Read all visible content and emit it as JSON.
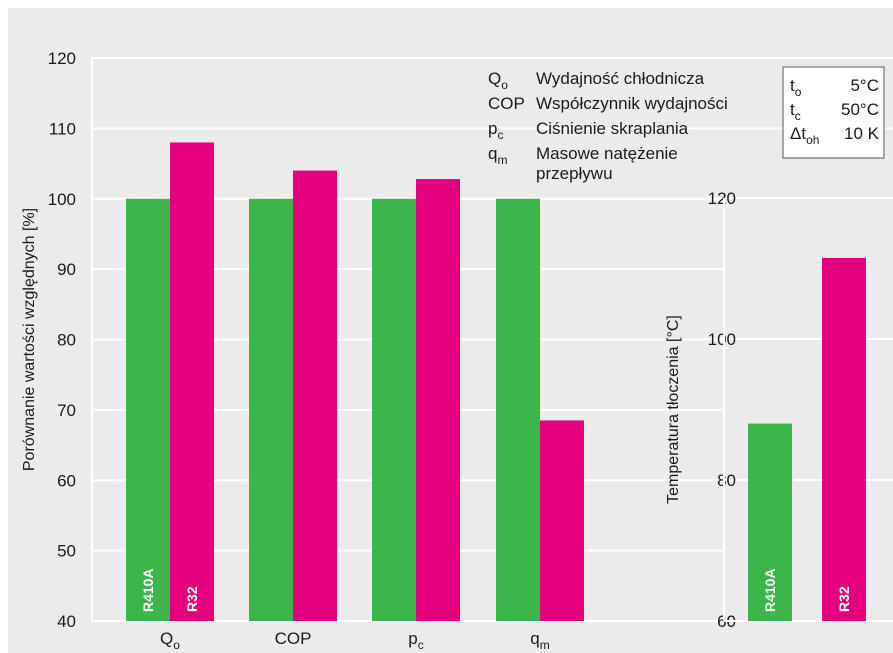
{
  "colors": {
    "background": "#ebebeb",
    "gridline": "#ffffff",
    "R410A": "#3cb54a",
    "R32": "#e5007e",
    "legend_box": "#ffffff"
  },
  "chart_data": [
    {
      "type": "bar",
      "ylabel": "Porównanie wartości względnych [%]",
      "ylim": [
        40,
        120
      ],
      "yticks": [
        "40",
        "50",
        "60",
        "70",
        "80",
        "90",
        "100",
        "110",
        "120"
      ],
      "grid": true,
      "categories": [
        {
          "main": "Q",
          "sub": "o"
        },
        {
          "main": "COP",
          "sub": ""
        },
        {
          "main": "p",
          "sub": "c"
        },
        {
          "main": "q",
          "sub": "m"
        }
      ],
      "series": [
        {
          "name": "R410A",
          "values": [
            100,
            100,
            100,
            100
          ]
        },
        {
          "name": "R32",
          "values": [
            108,
            104,
            102.8,
            68.5
          ]
        }
      ],
      "legend": {
        "placement": "top-right",
        "entries": [
          {
            "sym": "Q",
            "sub": "o",
            "desc": "Wydajność chłodnicza"
          },
          {
            "sym": "COP",
            "sub": "",
            "desc": "Współczynnik wydajności"
          },
          {
            "sym": "p",
            "sub": "c",
            "desc": "Ciśnienie skraplania"
          },
          {
            "sym": "q",
            "sub": "m",
            "desc": "Masowe natężenie",
            "desc2": "przepływu"
          }
        ]
      },
      "conditions": [
        {
          "sym": "t",
          "sub": "o",
          "value": "5°C"
        },
        {
          "sym": "t",
          "sub": "c",
          "value": "50°C"
        },
        {
          "sym": "Δt",
          "sub": "oh",
          "value": "10 K"
        }
      ]
    },
    {
      "type": "bar",
      "ylabel": "Temperatura tłoczenia [°C]",
      "ylim": [
        60,
        120
      ],
      "yticks": [
        "60",
        "80",
        "100",
        "120"
      ],
      "grid": true,
      "series": [
        {
          "name": "R410A",
          "values": [
            88
          ]
        },
        {
          "name": "R32",
          "values": [
            111.5
          ]
        }
      ]
    }
  ]
}
